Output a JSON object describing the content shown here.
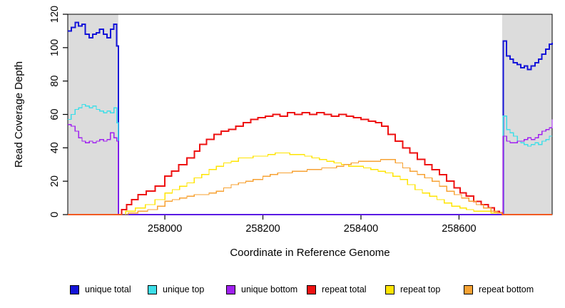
{
  "chart_data": {
    "type": "line",
    "title": "",
    "xlabel": "Coordinate in Reference Genome",
    "ylabel": "Read Coverage Depth",
    "xlim": [
      257802,
      258790
    ],
    "ylim": [
      0,
      120
    ],
    "x_ticks": [
      258000,
      258200,
      258400,
      258600
    ],
    "y_ticks": [
      0,
      20,
      40,
      60,
      80,
      100,
      120
    ],
    "grid": false,
    "legend_position": "bottom",
    "line_style": "step-after",
    "shade_color": "#DCDCDC",
    "shaded_regions": [
      [
        257802,
        257905
      ],
      [
        258688,
        258790
      ]
    ],
    "series": [
      {
        "name": "unique total",
        "color": "#1414D8",
        "width": 2,
        "points": [
          [
            257802,
            110
          ],
          [
            257809,
            112
          ],
          [
            257817,
            115
          ],
          [
            257824,
            113
          ],
          [
            257831,
            114
          ],
          [
            257838,
            108
          ],
          [
            257846,
            106
          ],
          [
            257853,
            108
          ],
          [
            257860,
            109
          ],
          [
            257867,
            111
          ],
          [
            257875,
            108
          ],
          [
            257882,
            106
          ],
          [
            257889,
            111
          ],
          [
            257896,
            114
          ],
          [
            257902,
            101
          ],
          [
            257905,
            0
          ],
          [
            258688,
            0
          ],
          [
            258690,
            104
          ],
          [
            258697,
            95
          ],
          [
            258704,
            93
          ],
          [
            258711,
            91
          ],
          [
            258719,
            90
          ],
          [
            258726,
            88
          ],
          [
            258733,
            89
          ],
          [
            258740,
            87
          ],
          [
            258747,
            89
          ],
          [
            258755,
            91
          ],
          [
            258762,
            93
          ],
          [
            258769,
            96
          ],
          [
            258777,
            99
          ],
          [
            258784,
            102
          ],
          [
            258790,
            103
          ]
        ]
      },
      {
        "name": "unique top",
        "color": "#3DDEE8",
        "width": 1.3,
        "points": [
          [
            257802,
            57
          ],
          [
            257809,
            60
          ],
          [
            257817,
            63
          ],
          [
            257824,
            64
          ],
          [
            257831,
            66
          ],
          [
            257838,
            65
          ],
          [
            257846,
            64
          ],
          [
            257853,
            65
          ],
          [
            257860,
            63
          ],
          [
            257867,
            62
          ],
          [
            257875,
            61
          ],
          [
            257882,
            62
          ],
          [
            257889,
            61
          ],
          [
            257896,
            64
          ],
          [
            257902,
            55
          ],
          [
            257905,
            0
          ],
          [
            258688,
            0
          ],
          [
            258690,
            59
          ],
          [
            258697,
            51
          ],
          [
            258704,
            49
          ],
          [
            258711,
            47
          ],
          [
            258719,
            44
          ],
          [
            258726,
            43
          ],
          [
            258733,
            42
          ],
          [
            258740,
            41
          ],
          [
            258747,
            42
          ],
          [
            258755,
            43
          ],
          [
            258762,
            42
          ],
          [
            258769,
            44
          ],
          [
            258777,
            45
          ],
          [
            258784,
            47
          ],
          [
            258790,
            47
          ]
        ]
      },
      {
        "name": "unique bottom",
        "color": "#A020F0",
        "width": 1.3,
        "points": [
          [
            257802,
            54
          ],
          [
            257809,
            53
          ],
          [
            257817,
            50
          ],
          [
            257824,
            46
          ],
          [
            257831,
            44
          ],
          [
            257838,
            43
          ],
          [
            257846,
            44
          ],
          [
            257853,
            43
          ],
          [
            257860,
            44
          ],
          [
            257867,
            45
          ],
          [
            257875,
            44
          ],
          [
            257882,
            45
          ],
          [
            257889,
            49
          ],
          [
            257896,
            46
          ],
          [
            257902,
            44
          ],
          [
            257905,
            0
          ],
          [
            258688,
            0
          ],
          [
            258690,
            47
          ],
          [
            258697,
            44
          ],
          [
            258704,
            43
          ],
          [
            258711,
            43
          ],
          [
            258719,
            44
          ],
          [
            258726,
            44
          ],
          [
            258733,
            45
          ],
          [
            258740,
            46
          ],
          [
            258747,
            45
          ],
          [
            258755,
            46
          ],
          [
            258762,
            48
          ],
          [
            258769,
            50
          ],
          [
            258777,
            51
          ],
          [
            258784,
            52
          ],
          [
            258790,
            57
          ]
        ]
      },
      {
        "name": "repeat total",
        "color": "#EE1111",
        "width": 2,
        "points": [
          [
            257802,
            0
          ],
          [
            257905,
            0
          ],
          [
            257912,
            3
          ],
          [
            257922,
            6
          ],
          [
            257932,
            9
          ],
          [
            257945,
            12
          ],
          [
            257962,
            14
          ],
          [
            257980,
            17
          ],
          [
            258000,
            23
          ],
          [
            258014,
            26
          ],
          [
            258028,
            30
          ],
          [
            258045,
            34
          ],
          [
            258060,
            38
          ],
          [
            258071,
            42
          ],
          [
            258085,
            45
          ],
          [
            258100,
            48
          ],
          [
            258115,
            50
          ],
          [
            258130,
            51
          ],
          [
            258145,
            53
          ],
          [
            258160,
            55
          ],
          [
            258175,
            57
          ],
          [
            258190,
            58
          ],
          [
            258205,
            59
          ],
          [
            258220,
            60
          ],
          [
            258235,
            59
          ],
          [
            258250,
            61
          ],
          [
            258265,
            60
          ],
          [
            258280,
            61
          ],
          [
            258295,
            60
          ],
          [
            258310,
            61
          ],
          [
            258325,
            60
          ],
          [
            258340,
            59
          ],
          [
            258355,
            60
          ],
          [
            258370,
            59
          ],
          [
            258385,
            58
          ],
          [
            258400,
            57
          ],
          [
            258415,
            56
          ],
          [
            258430,
            55
          ],
          [
            258442,
            53
          ],
          [
            258455,
            48
          ],
          [
            258470,
            44
          ],
          [
            258485,
            40
          ],
          [
            258500,
            37
          ],
          [
            258515,
            33
          ],
          [
            258530,
            30
          ],
          [
            258545,
            27
          ],
          [
            258560,
            24
          ],
          [
            258575,
            20
          ],
          [
            258590,
            16
          ],
          [
            258602,
            13
          ],
          [
            258615,
            11
          ],
          [
            258630,
            8
          ],
          [
            258645,
            6
          ],
          [
            258660,
            4
          ],
          [
            258672,
            2
          ],
          [
            258682,
            1
          ],
          [
            258688,
            0
          ],
          [
            258790,
            0
          ]
        ]
      },
      {
        "name": "repeat top",
        "color": "#FFE400",
        "width": 1.3,
        "points": [
          [
            257802,
            0
          ],
          [
            257905,
            0
          ],
          [
            257920,
            2
          ],
          [
            257940,
            4
          ],
          [
            257960,
            6
          ],
          [
            257980,
            9
          ],
          [
            258000,
            13
          ],
          [
            258015,
            15
          ],
          [
            258030,
            17
          ],
          [
            258045,
            19
          ],
          [
            258060,
            22
          ],
          [
            258075,
            24
          ],
          [
            258090,
            27
          ],
          [
            258105,
            29
          ],
          [
            258120,
            31
          ],
          [
            258135,
            32
          ],
          [
            258150,
            34
          ],
          [
            258165,
            34
          ],
          [
            258180,
            35
          ],
          [
            258195,
            35
          ],
          [
            258210,
            36
          ],
          [
            258225,
            37
          ],
          [
            258240,
            37
          ],
          [
            258255,
            36
          ],
          [
            258270,
            36
          ],
          [
            258285,
            35
          ],
          [
            258300,
            34
          ],
          [
            258315,
            33
          ],
          [
            258330,
            32
          ],
          [
            258345,
            31
          ],
          [
            258360,
            30
          ],
          [
            258375,
            29
          ],
          [
            258390,
            29
          ],
          [
            258405,
            28
          ],
          [
            258420,
            27
          ],
          [
            258435,
            26
          ],
          [
            258450,
            25
          ],
          [
            258465,
            23
          ],
          [
            258480,
            21
          ],
          [
            258495,
            18
          ],
          [
            258510,
            15
          ],
          [
            258525,
            13
          ],
          [
            258540,
            11
          ],
          [
            258555,
            9
          ],
          [
            258570,
            7
          ],
          [
            258585,
            5
          ],
          [
            258602,
            4
          ],
          [
            258615,
            3
          ],
          [
            258630,
            2
          ],
          [
            258648,
            2
          ],
          [
            258665,
            1
          ],
          [
            258688,
            0
          ],
          [
            258790,
            0
          ]
        ]
      },
      {
        "name": "repeat bottom",
        "color": "#F7A233",
        "width": 1.3,
        "points": [
          [
            257802,
            0
          ],
          [
            257905,
            0
          ],
          [
            257925,
            1
          ],
          [
            257945,
            2
          ],
          [
            257965,
            3
          ],
          [
            257985,
            5
          ],
          [
            258000,
            8
          ],
          [
            258015,
            9
          ],
          [
            258030,
            10
          ],
          [
            258045,
            11
          ],
          [
            258060,
            12
          ],
          [
            258075,
            12
          ],
          [
            258090,
            13
          ],
          [
            258105,
            14
          ],
          [
            258120,
            16
          ],
          [
            258135,
            18
          ],
          [
            258150,
            19
          ],
          [
            258165,
            20
          ],
          [
            258180,
            21
          ],
          [
            258200,
            23
          ],
          [
            258215,
            24
          ],
          [
            258230,
            25
          ],
          [
            258245,
            25
          ],
          [
            258260,
            26
          ],
          [
            258275,
            26
          ],
          [
            258290,
            27
          ],
          [
            258305,
            27
          ],
          [
            258320,
            28
          ],
          [
            258335,
            28
          ],
          [
            258350,
            29
          ],
          [
            258365,
            30
          ],
          [
            258380,
            31
          ],
          [
            258395,
            32
          ],
          [
            258410,
            32
          ],
          [
            258425,
            32
          ],
          [
            258440,
            33
          ],
          [
            258455,
            33
          ],
          [
            258470,
            31
          ],
          [
            258485,
            28
          ],
          [
            258500,
            26
          ],
          [
            258515,
            24
          ],
          [
            258530,
            22
          ],
          [
            258545,
            20
          ],
          [
            258560,
            17
          ],
          [
            258575,
            14
          ],
          [
            258590,
            12
          ],
          [
            258605,
            10
          ],
          [
            258620,
            8
          ],
          [
            258635,
            6
          ],
          [
            258650,
            4
          ],
          [
            258665,
            2
          ],
          [
            258678,
            1
          ],
          [
            258688,
            0
          ],
          [
            258790,
            0
          ]
        ]
      }
    ]
  }
}
